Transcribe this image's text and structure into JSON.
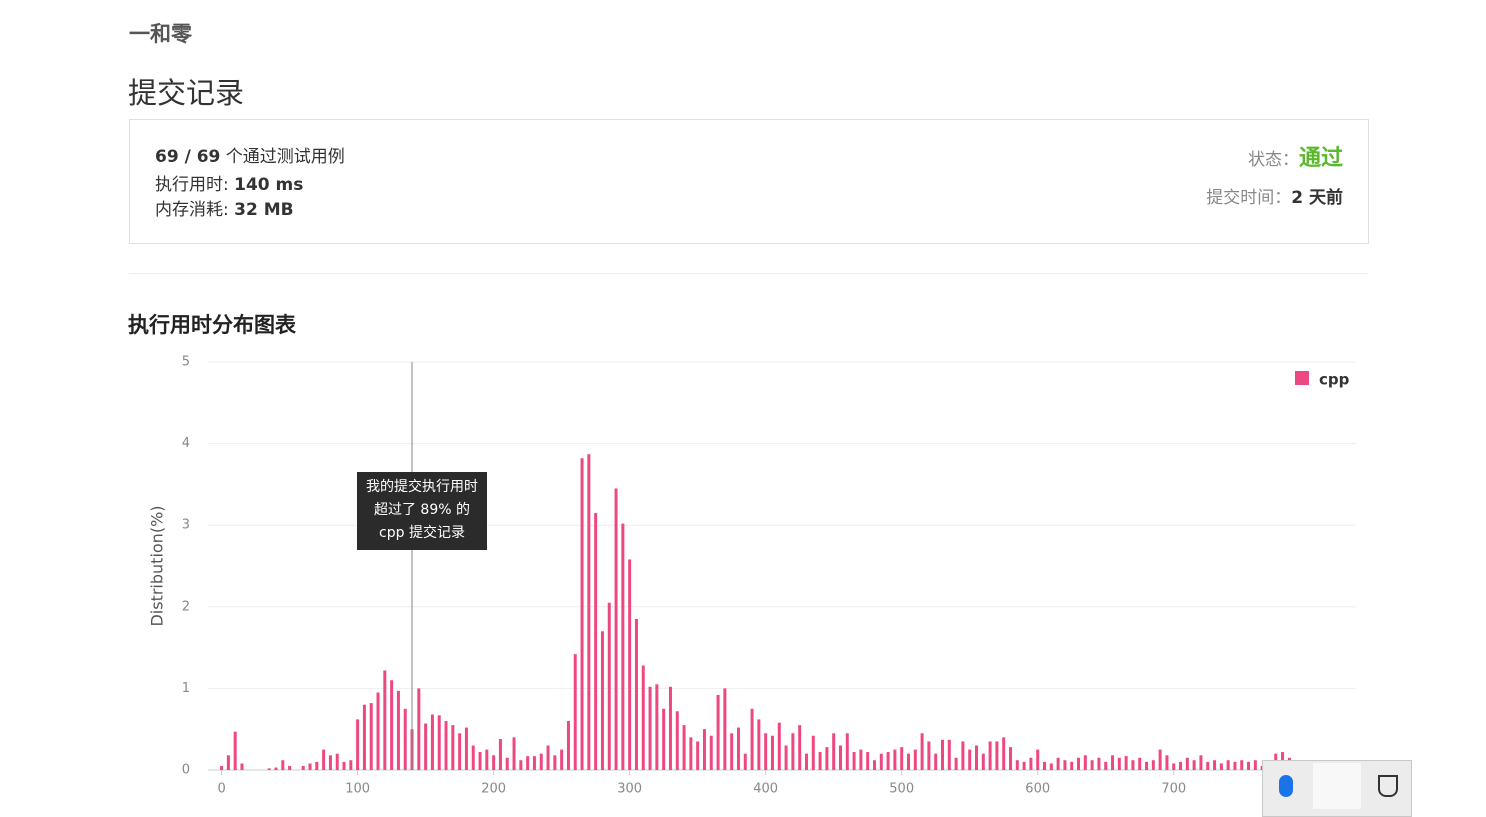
{
  "header": {
    "problem": "一和零",
    "title": "提交记录"
  },
  "summary": {
    "passed": "69 / 69",
    "passed_label": "个通过测试用例",
    "runtime_label": "执行用时:",
    "runtime": "140 ms",
    "memory_label": "内存消耗:",
    "memory": "32 MB",
    "status_label": "状态：",
    "status": "通过",
    "time_label": "提交时间：",
    "time": "2 天前"
  },
  "chart_data": {
    "type": "bar",
    "title": "执行用时分布图表",
    "y_label": "Distribution(%)",
    "x": [
      0,
      5,
      10,
      15,
      20,
      25,
      30,
      35,
      40,
      45,
      50,
      55,
      60,
      65,
      70,
      75,
      80,
      85,
      90,
      95,
      100,
      105,
      110,
      115,
      120,
      125,
      130,
      135,
      140,
      145,
      150,
      155,
      160,
      165,
      170,
      175,
      180,
      185,
      190,
      195,
      200,
      205,
      210,
      215,
      220,
      225,
      230,
      235,
      240,
      245,
      250,
      255,
      260,
      265,
      270,
      275,
      280,
      285,
      290,
      295,
      300,
      305,
      310,
      315,
      320,
      325,
      330,
      335,
      340,
      345,
      350,
      355,
      360,
      365,
      370,
      375,
      380,
      385,
      390,
      395,
      400,
      405,
      410,
      415,
      420,
      425,
      430,
      435,
      440,
      445,
      450,
      455,
      460,
      465,
      470,
      475,
      480,
      485,
      490,
      495,
      500,
      505,
      510,
      515,
      520,
      525,
      530,
      535,
      540,
      545,
      550,
      555,
      560,
      565,
      570,
      575,
      580,
      585,
      590,
      595,
      600,
      605,
      610,
      615,
      620,
      625,
      630,
      635,
      640,
      645,
      650,
      655,
      660,
      665,
      670,
      675,
      680,
      685,
      690,
      695,
      700,
      705,
      710,
      715,
      720,
      725,
      730,
      735,
      740,
      745,
      750,
      755,
      760,
      765,
      770,
      775,
      780,
      785,
      790,
      795,
      800,
      805,
      810,
      815,
      820,
      825
    ],
    "series": [
      {
        "name": "cpp",
        "color": "#ed4882",
        "values": [
          0.05,
          0.18,
          0.47,
          0.08,
          0,
          0,
          0,
          0.02,
          0.03,
          0.12,
          0.05,
          0,
          0.05,
          0.08,
          0.1,
          0.25,
          0.18,
          0.2,
          0.1,
          0.12,
          0.62,
          0.8,
          0.82,
          0.95,
          1.22,
          1.1,
          0.97,
          0.75,
          0.5,
          1.0,
          0.57,
          0.68,
          0.67,
          0.6,
          0.55,
          0.45,
          0.52,
          0.3,
          0.22,
          0.25,
          0.18,
          0.38,
          0.15,
          0.4,
          0.12,
          0.17,
          0.17,
          0.2,
          0.3,
          0.18,
          0.25,
          0.6,
          1.42,
          3.82,
          3.87,
          3.15,
          1.7,
          2.05,
          3.45,
          3.02,
          2.58,
          1.85,
          1.28,
          1.02,
          1.05,
          0.75,
          1.02,
          0.72,
          0.55,
          0.4,
          0.35,
          0.5,
          0.42,
          0.92,
          1.0,
          0.45,
          0.52,
          0.2,
          0.75,
          0.62,
          0.45,
          0.42,
          0.58,
          0.3,
          0.45,
          0.55,
          0.2,
          0.42,
          0.22,
          0.28,
          0.45,
          0.3,
          0.45,
          0.22,
          0.25,
          0.22,
          0.12,
          0.2,
          0.22,
          0.25,
          0.28,
          0.2,
          0.25,
          0.45,
          0.35,
          0.2,
          0.37,
          0.37,
          0.15,
          0.35,
          0.25,
          0.3,
          0.2,
          0.35,
          0.35,
          0.4,
          0.28,
          0.12,
          0.1,
          0.15,
          0.25,
          0.1,
          0.08,
          0.15,
          0.12,
          0.1,
          0.15,
          0.18,
          0.12,
          0.15,
          0.1,
          0.18,
          0.15,
          0.17,
          0.12,
          0.15,
          0.1,
          0.12,
          0.25,
          0.18,
          0.08,
          0.1,
          0.15,
          0.12,
          0.18,
          0.1,
          0.12,
          0.08,
          0.12,
          0.1,
          0.12,
          0.1,
          0.12,
          0.05,
          0.12,
          0.2,
          0.22,
          0.15,
          0.1,
          0.12,
          0.08,
          0.1,
          0.12,
          0.1,
          0.12,
          0.08
        ]
      }
    ],
    "xlim": [
      -10,
      834
    ],
    "xticks": [
      0,
      100,
      200,
      300,
      400,
      500,
      600,
      700
    ],
    "ylim": [
      0,
      5
    ],
    "yticks": [
      0,
      1,
      2,
      3,
      4,
      5
    ],
    "grid": true,
    "marker_x": 140,
    "annotation": [
      "我的提交执行用时",
      "超过了 89% 的",
      "cpp 提交记录"
    ]
  }
}
